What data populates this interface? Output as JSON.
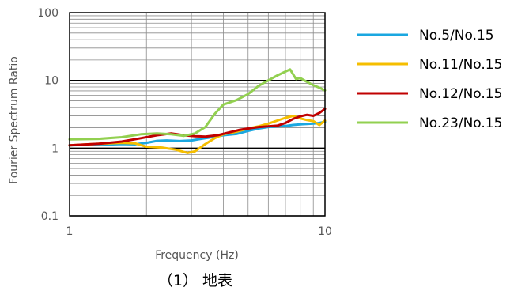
{
  "chart_data": {
    "type": "line",
    "xlabel": "Frequency (Hz)",
    "ylabel": "Fourier Spectrum Ratio",
    "x_scale": "log",
    "y_scale": "log",
    "xlim": [
      1,
      10
    ],
    "ylim": [
      0.1,
      100
    ],
    "x_ticks": [
      "1",
      "10"
    ],
    "y_ticks": [
      "0.1",
      "1",
      "10",
      "100"
    ],
    "grid": true,
    "legend_position": "right",
    "caption": "（1） 地表",
    "series": [
      {
        "name": "No.5/No.15",
        "color": "#1aa7e0",
        "points": [
          [
            1.0,
            1.1
          ],
          [
            1.2,
            1.12
          ],
          [
            1.4,
            1.13
          ],
          [
            1.6,
            1.15
          ],
          [
            1.8,
            1.14
          ],
          [
            2.0,
            1.2
          ],
          [
            2.2,
            1.28
          ],
          [
            2.4,
            1.3
          ],
          [
            2.7,
            1.27
          ],
          [
            3.0,
            1.3
          ],
          [
            3.3,
            1.38
          ],
          [
            3.6,
            1.45
          ],
          [
            4.0,
            1.55
          ],
          [
            4.5,
            1.62
          ],
          [
            5.0,
            1.8
          ],
          [
            5.5,
            1.95
          ],
          [
            6.0,
            2.05
          ],
          [
            6.5,
            2.1
          ],
          [
            7.0,
            2.12
          ],
          [
            7.5,
            2.2
          ],
          [
            8.0,
            2.25
          ],
          [
            8.5,
            2.28
          ],
          [
            9.0,
            2.3
          ],
          [
            9.5,
            2.35
          ],
          [
            10.0,
            2.45
          ]
        ]
      },
      {
        "name": "No.11/No.15",
        "color": "#f5be00",
        "points": [
          [
            1.0,
            1.1
          ],
          [
            1.3,
            1.16
          ],
          [
            1.6,
            1.2
          ],
          [
            1.8,
            1.18
          ],
          [
            2.0,
            1.05
          ],
          [
            2.3,
            1.02
          ],
          [
            2.6,
            0.95
          ],
          [
            2.9,
            0.85
          ],
          [
            3.1,
            0.9
          ],
          [
            3.4,
            1.15
          ],
          [
            3.7,
            1.4
          ],
          [
            4.0,
            1.6
          ],
          [
            4.5,
            1.75
          ],
          [
            5.0,
            1.95
          ],
          [
            5.5,
            2.1
          ],
          [
            6.0,
            2.3
          ],
          [
            6.5,
            2.55
          ],
          [
            7.0,
            2.8
          ],
          [
            7.5,
            3.0
          ],
          [
            8.0,
            2.75
          ],
          [
            8.5,
            2.6
          ],
          [
            9.0,
            2.5
          ],
          [
            9.5,
            2.2
          ],
          [
            10.0,
            2.55
          ]
        ]
      },
      {
        "name": "No.12/No.15",
        "color": "#c00000",
        "points": [
          [
            1.0,
            1.1
          ],
          [
            1.3,
            1.16
          ],
          [
            1.6,
            1.25
          ],
          [
            1.9,
            1.4
          ],
          [
            2.2,
            1.55
          ],
          [
            2.5,
            1.65
          ],
          [
            2.8,
            1.55
          ],
          [
            3.1,
            1.5
          ],
          [
            3.4,
            1.48
          ],
          [
            3.8,
            1.55
          ],
          [
            4.2,
            1.7
          ],
          [
            4.6,
            1.85
          ],
          [
            5.0,
            1.95
          ],
          [
            5.5,
            2.05
          ],
          [
            6.0,
            2.1
          ],
          [
            6.5,
            2.15
          ],
          [
            7.0,
            2.35
          ],
          [
            7.5,
            2.7
          ],
          [
            8.0,
            2.95
          ],
          [
            8.5,
            3.1
          ],
          [
            9.0,
            3.0
          ],
          [
            9.5,
            3.3
          ],
          [
            10.0,
            3.8
          ]
        ]
      },
      {
        "name": "No.23/No.15",
        "color": "#92d050",
        "points": [
          [
            1.0,
            1.35
          ],
          [
            1.3,
            1.37
          ],
          [
            1.6,
            1.45
          ],
          [
            1.9,
            1.6
          ],
          [
            2.2,
            1.65
          ],
          [
            2.5,
            1.6
          ],
          [
            2.8,
            1.52
          ],
          [
            3.1,
            1.65
          ],
          [
            3.4,
            2.05
          ],
          [
            3.7,
            3.2
          ],
          [
            4.0,
            4.4
          ],
          [
            4.5,
            5.1
          ],
          [
            5.0,
            6.3
          ],
          [
            5.5,
            8.3
          ],
          [
            6.0,
            10.0
          ],
          [
            6.5,
            11.8
          ],
          [
            7.0,
            13.5
          ],
          [
            7.3,
            14.5
          ],
          [
            7.7,
            10.5
          ],
          [
            8.0,
            10.8
          ],
          [
            8.5,
            9.5
          ],
          [
            9.0,
            8.5
          ],
          [
            9.5,
            7.8
          ],
          [
            10.0,
            7.1
          ]
        ]
      }
    ]
  }
}
